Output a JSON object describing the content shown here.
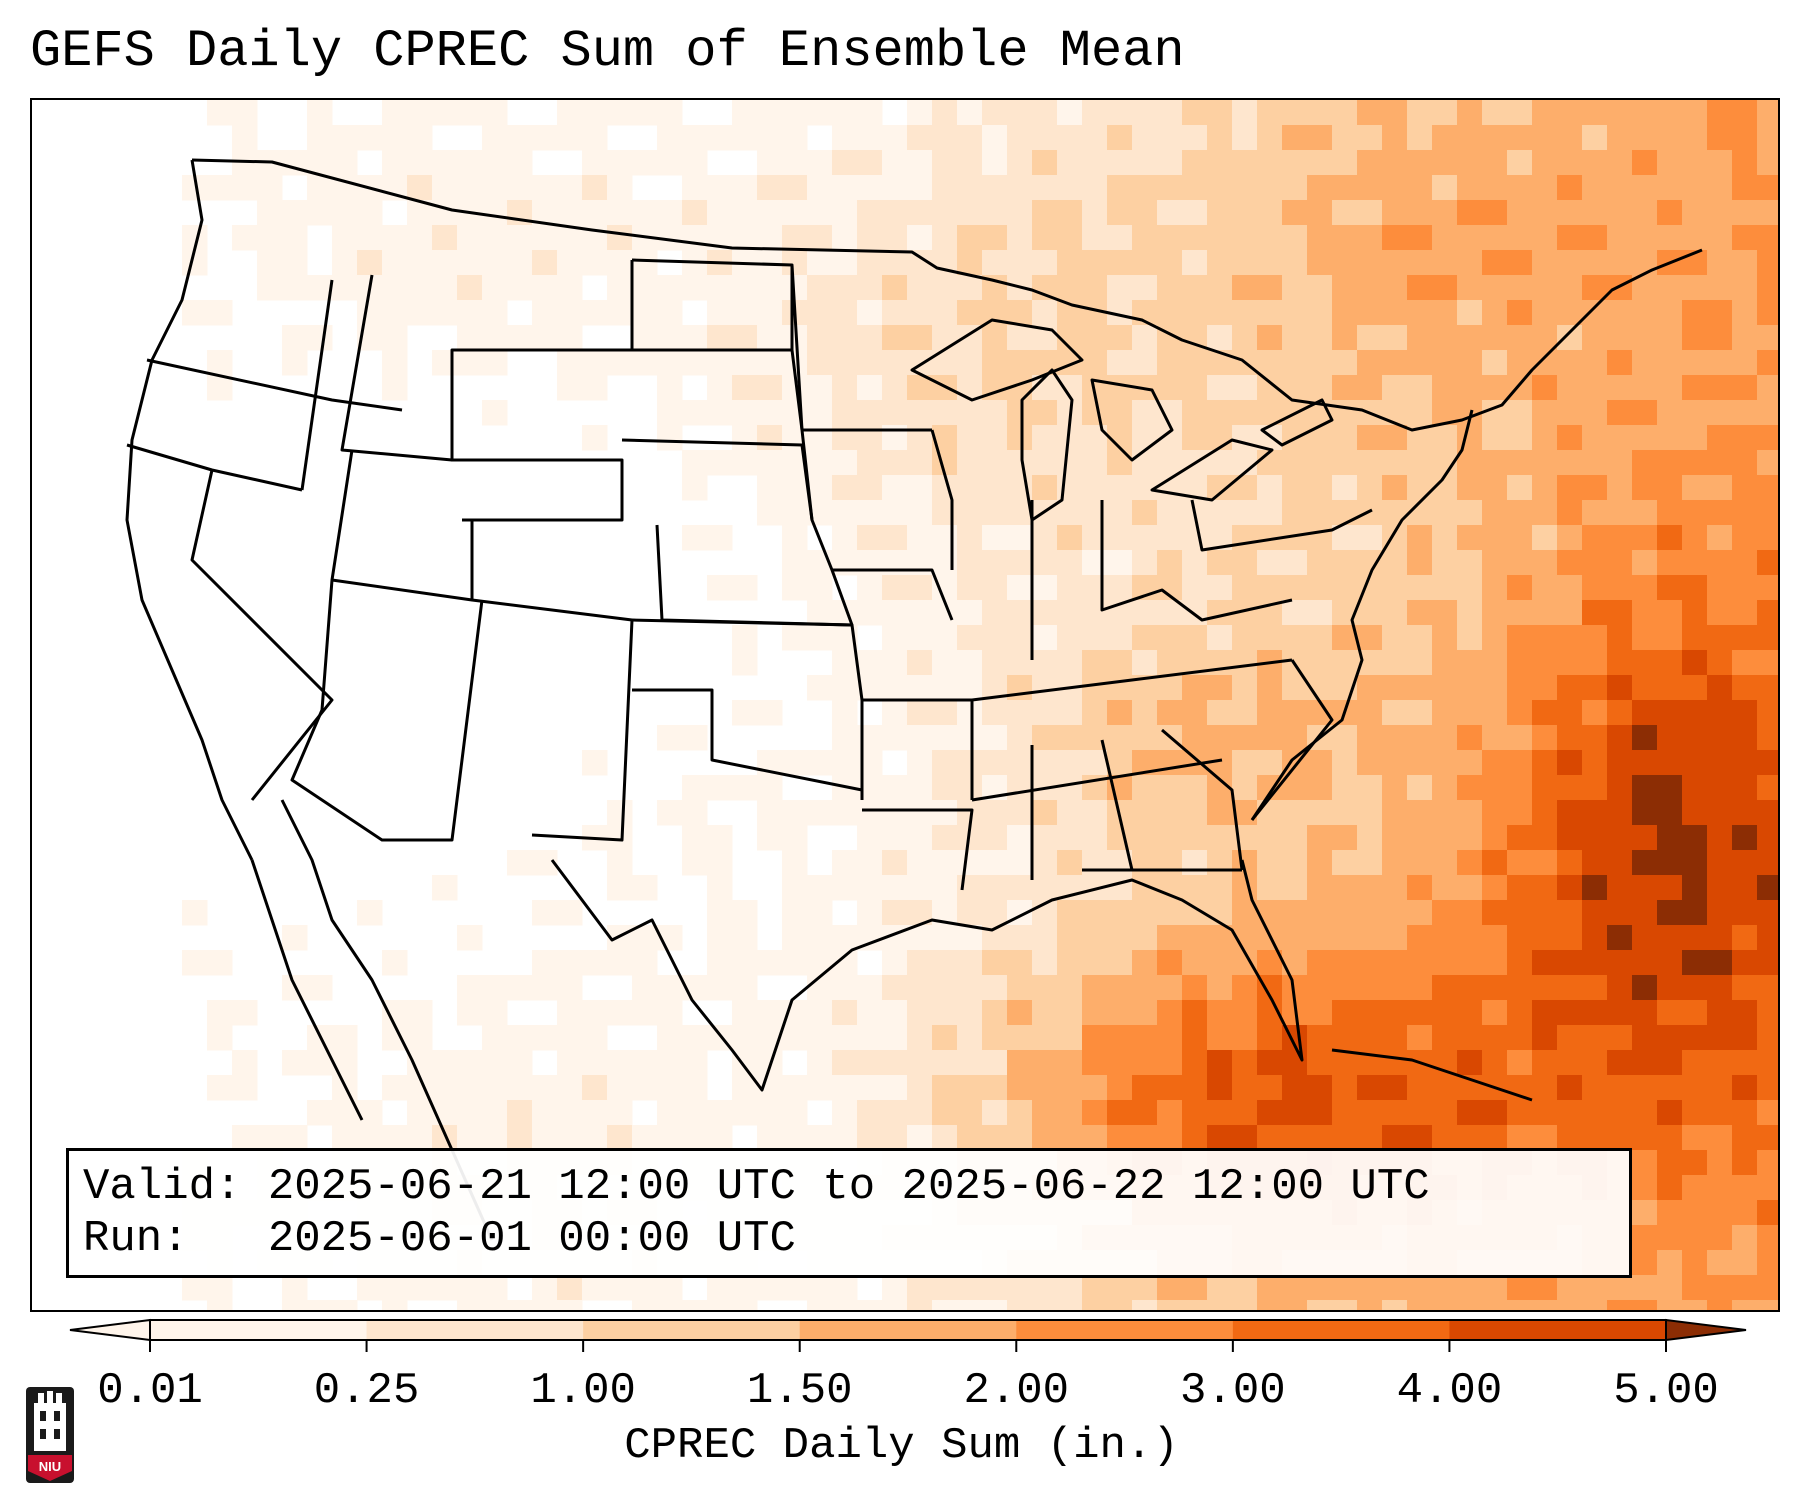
{
  "title": "GEFS Daily CPREC Sum of Ensemble Mean",
  "info": {
    "valid_label": "Valid:",
    "valid_value": "2025-06-21 12:00 UTC to 2025-06-22 12:00 UTC",
    "run_label": "Run:",
    "run_value": "2025-06-01 00:00 UTC"
  },
  "colorbar": {
    "label": "CPREC Daily Sum (in.)",
    "ticks": [
      "0.01",
      "0.25",
      "1.00",
      "1.50",
      "2.00",
      "3.00",
      "4.00",
      "5.00"
    ],
    "colors": [
      "#fff5eb",
      "#fee6ce",
      "#fdd0a2",
      "#fdae6b",
      "#fd8d3c",
      "#f16913",
      "#d94801",
      "#8c2d04"
    ],
    "extend": "both"
  },
  "map": {
    "region": "Contiguous United States",
    "precip_field": {
      "units": "in.",
      "comment_levels": "0 = below 0.01, 1..8 = colorbar bins"
    },
    "colors": {
      "land_background": "#fff5eb",
      "borders": "#000000"
    }
  },
  "logo": {
    "text": "NIU",
    "icon": "niu-tower-logo-icon",
    "color": "#c8102e"
  }
}
